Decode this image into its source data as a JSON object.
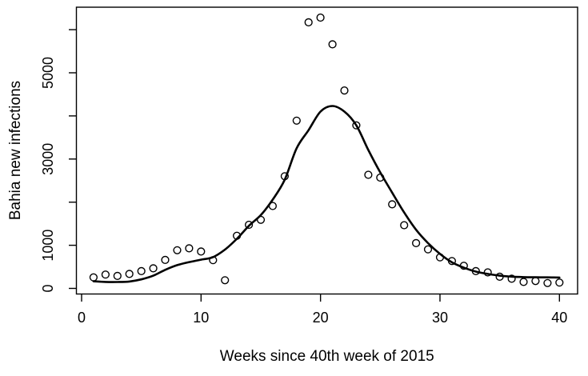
{
  "figure": {
    "background_color": "#ffffff",
    "foreground_color": "#000000"
  },
  "chart_data": {
    "type": "scatter",
    "title": "",
    "xlabel": "Weeks since 40th week of 2015",
    "ylabel": "Bahia new infections",
    "grid": false,
    "legend": "none",
    "xlim": [
      -0.435,
      41.52
    ],
    "ylim": [
      -130,
      6521
    ],
    "x_ticks": [
      0,
      10,
      20,
      30,
      40
    ],
    "x_tick_labels": [
      "0",
      "10",
      "20",
      "30",
      "40"
    ],
    "y_ticks": [
      0,
      1000,
      2000,
      3000,
      4000,
      5000,
      6000
    ],
    "y_tick_labels": [
      "0",
      "1000",
      "",
      "3000",
      "",
      "5000",
      ""
    ],
    "series": [
      {
        "name": "observed-new-infections",
        "style": "points",
        "marker": "open-circle",
        "color": "#000000",
        "x": [
          1,
          2,
          3,
          4,
          5,
          6,
          7,
          8,
          9,
          10,
          11,
          12,
          13,
          14,
          15,
          16,
          17,
          18,
          19,
          20,
          21,
          22,
          23,
          24,
          25,
          26,
          27,
          28,
          29,
          30,
          31,
          32,
          33,
          34,
          35,
          36,
          37,
          38,
          39,
          40
        ],
        "y": [
          255,
          320,
          290,
          335,
          400,
          465,
          660,
          885,
          930,
          855,
          655,
          190,
          1220,
          1475,
          1590,
          1910,
          2600,
          3890,
          6170,
          6280,
          5660,
          4590,
          3780,
          2635,
          2570,
          1950,
          1465,
          1050,
          905,
          720,
          635,
          525,
          400,
          370,
          270,
          225,
          150,
          170,
          125,
          135
        ]
      },
      {
        "name": "fitted-curve",
        "style": "line",
        "color": "#000000",
        "x": [
          1,
          2,
          3,
          4,
          5,
          6,
          7,
          8,
          9,
          10,
          11,
          12,
          13,
          14,
          15,
          16,
          17,
          18,
          19,
          20,
          21,
          22,
          23,
          24,
          25,
          26,
          27,
          28,
          29,
          30,
          31,
          32,
          33,
          34,
          35,
          36,
          37,
          38,
          39,
          40
        ],
        "y": [
          165,
          150,
          148,
          160,
          210,
          295,
          430,
          540,
          610,
          665,
          725,
          900,
          1150,
          1450,
          1700,
          2060,
          2520,
          3250,
          3670,
          4100,
          4230,
          4100,
          3780,
          3210,
          2690,
          2220,
          1760,
          1360,
          1050,
          800,
          605,
          480,
          390,
          335,
          295,
          272,
          262,
          257,
          255,
          253
        ]
      }
    ]
  }
}
